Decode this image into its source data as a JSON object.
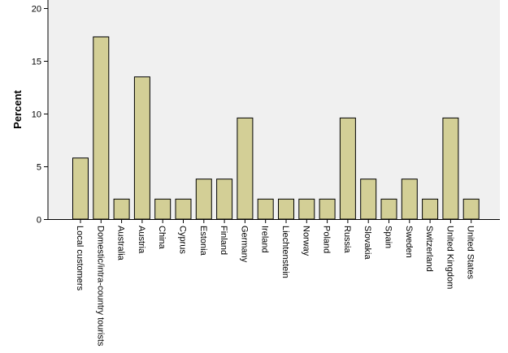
{
  "chart_data": {
    "type": "bar",
    "title": "",
    "xlabel": "",
    "ylabel": "Percent",
    "ylim": [
      0,
      20
    ],
    "yticks": [
      0,
      5,
      10,
      15,
      20
    ],
    "grid": false,
    "categories": [
      "Local customers",
      "Domestic/intra-country tourists",
      "Australia",
      "Austria",
      "China",
      "Cyprus",
      "Estonia",
      "Finland",
      "Germany",
      "Ireland",
      "Liechtenstein",
      "Norway",
      "Poland",
      "Russia",
      "Slovakia",
      "Spain",
      "Sweden",
      "Switzerland",
      "United Kingdom",
      "United States"
    ],
    "values": [
      5.8,
      17.3,
      1.9,
      13.5,
      1.9,
      1.9,
      3.8,
      3.8,
      9.6,
      1.9,
      1.9,
      1.9,
      1.9,
      9.6,
      3.8,
      1.9,
      3.8,
      1.9,
      9.6,
      1.9
    ],
    "colors": {
      "bar_fill": "#d3cf96",
      "bar_stroke": "#000000",
      "plot_background": "#f0f0f0",
      "axis": "#000000"
    }
  }
}
